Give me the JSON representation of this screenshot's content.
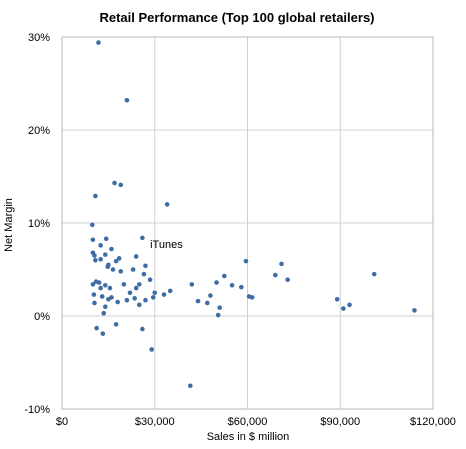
{
  "chart_data": {
    "type": "scatter",
    "title": "Retail Performance (Top 100 global retailers)",
    "xlabel": "Sales in $ million",
    "ylabel": "Net Margin",
    "xlim": [
      0,
      120000
    ],
    "ylim": [
      -10,
      30
    ],
    "x_ticks": [
      0,
      30000,
      60000,
      90000,
      120000
    ],
    "x_tick_labels": [
      "$0",
      "$30,000",
      "$60,000",
      "$90,000",
      "$120,000"
    ],
    "y_ticks": [
      -10,
      0,
      10,
      20,
      30
    ],
    "y_tick_labels": [
      "-10%",
      "0%",
      "10%",
      "20%",
      "30%"
    ],
    "grid": true,
    "legend": "none",
    "point_color": "#3d6da3",
    "annotations": [
      {
        "text": "iTunes",
        "x": 28500,
        "y": 7.3
      }
    ],
    "series": [
      {
        "points": [
          [
            11800,
            29.4
          ],
          [
            21000,
            23.2
          ],
          [
            17000,
            14.3
          ],
          [
            19000,
            14.1
          ],
          [
            34000,
            12.0
          ],
          [
            10800,
            12.9
          ],
          [
            9800,
            9.8
          ],
          [
            14300,
            8.3
          ],
          [
            26000,
            8.4
          ],
          [
            10000,
            8.2
          ],
          [
            12500,
            7.6
          ],
          [
            16000,
            7.2
          ],
          [
            10000,
            6.8
          ],
          [
            10500,
            6.5
          ],
          [
            12500,
            6.1
          ],
          [
            14000,
            6.6
          ],
          [
            18500,
            6.2
          ],
          [
            24000,
            6.4
          ],
          [
            10800,
            6.0
          ],
          [
            17500,
            5.9
          ],
          [
            15000,
            5.5
          ],
          [
            16500,
            5.0
          ],
          [
            19000,
            4.8
          ],
          [
            23000,
            5.0
          ],
          [
            27000,
            5.4
          ],
          [
            14800,
            5.3
          ],
          [
            11000,
            3.7
          ],
          [
            12000,
            3.6
          ],
          [
            10000,
            3.4
          ],
          [
            12500,
            3.0
          ],
          [
            14000,
            3.3
          ],
          [
            15500,
            3.0
          ],
          [
            20000,
            3.4
          ],
          [
            22000,
            2.5
          ],
          [
            24000,
            3.0
          ],
          [
            25000,
            3.4
          ],
          [
            26500,
            4.5
          ],
          [
            28500,
            3.9
          ],
          [
            30000,
            2.5
          ],
          [
            10300,
            2.3
          ],
          [
            13000,
            2.1
          ],
          [
            15000,
            1.8
          ],
          [
            16000,
            2.0
          ],
          [
            18000,
            1.5
          ],
          [
            21000,
            1.7
          ],
          [
            23500,
            1.9
          ],
          [
            25000,
            1.2
          ],
          [
            27000,
            1.7
          ],
          [
            29500,
            2.0
          ],
          [
            33000,
            2.3
          ],
          [
            35000,
            2.7
          ],
          [
            10500,
            1.4
          ],
          [
            14000,
            1.0
          ],
          [
            13500,
            0.3
          ],
          [
            17500,
            -0.9
          ],
          [
            11200,
            -1.3
          ],
          [
            13200,
            -1.9
          ],
          [
            26000,
            -1.4
          ],
          [
            29000,
            -3.6
          ],
          [
            42000,
            3.4
          ],
          [
            44000,
            1.6
          ],
          [
            47000,
            1.4
          ],
          [
            48000,
            2.2
          ],
          [
            50000,
            3.6
          ],
          [
            52500,
            4.3
          ],
          [
            55000,
            3.3
          ],
          [
            58000,
            3.1
          ],
          [
            59500,
            5.9
          ],
          [
            60500,
            2.1
          ],
          [
            61500,
            2.0
          ],
          [
            51000,
            0.9
          ],
          [
            50500,
            0.1
          ],
          [
            41500,
            -7.5
          ],
          [
            69000,
            4.4
          ],
          [
            71000,
            5.6
          ],
          [
            73000,
            3.9
          ],
          [
            89000,
            1.8
          ],
          [
            91000,
            0.8
          ],
          [
            93000,
            1.2
          ],
          [
            101000,
            4.5
          ],
          [
            114000,
            0.6
          ]
        ]
      }
    ]
  }
}
